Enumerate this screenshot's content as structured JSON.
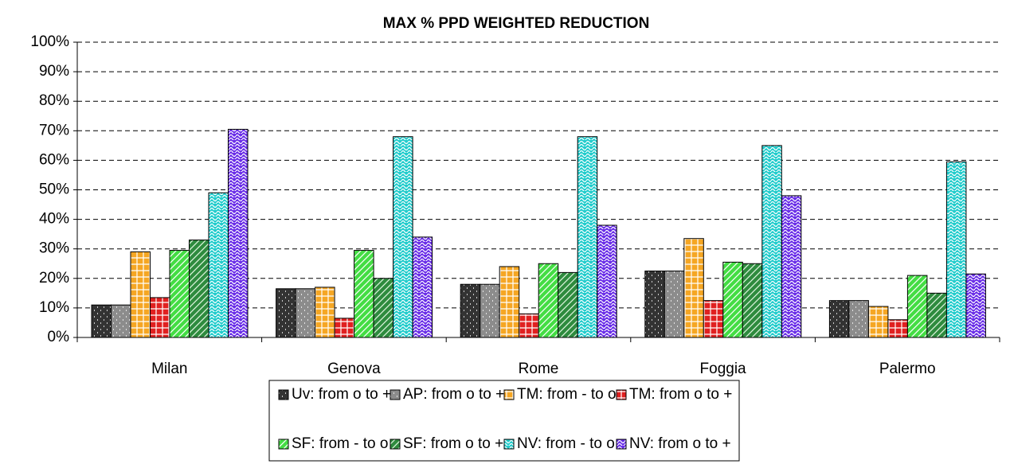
{
  "chart_data": {
    "type": "bar",
    "title": "MAX % PPD WEIGHTED REDUCTION",
    "categories": [
      "Milan",
      "Genova",
      "Rome",
      "Foggia",
      "Palermo"
    ],
    "series": [
      {
        "name": "Uv: from o to +",
        "color": "#333333",
        "values": [
          11,
          16.5,
          18,
          22.5,
          12.5
        ]
      },
      {
        "name": "AP: from o to +",
        "color": "#8c8c8c",
        "values": [
          11,
          16.5,
          18,
          22.5,
          12.5
        ]
      },
      {
        "name": "TM: from - to o",
        "color": "#f5a623",
        "values": [
          29,
          17,
          24,
          33.5,
          10.5
        ]
      },
      {
        "name": "TM: from o to +",
        "color": "#e02020",
        "values": [
          13.5,
          6.5,
          8,
          12.5,
          6
        ]
      },
      {
        "name": "SF: from - to o",
        "color": "#44dd44",
        "values": [
          29.5,
          29.5,
          25,
          25.5,
          21
        ]
      },
      {
        "name": "SF: from o to +",
        "color": "#2e8b3e",
        "values": [
          33,
          20,
          22,
          25,
          15
        ]
      },
      {
        "name": "NV: from - to o",
        "color": "#22cccc",
        "values": [
          49,
          68,
          68,
          65,
          59.5
        ]
      },
      {
        "name": "NV: from o to +",
        "color": "#6a2ee8",
        "values": [
          70.5,
          34,
          38,
          48,
          21.5
        ]
      }
    ],
    "ylim": [
      0,
      100
    ],
    "yticks": [
      {
        "value": 0,
        "label": "0%"
      },
      {
        "value": 10,
        "label": "10%"
      },
      {
        "value": 20,
        "label": "20%"
      },
      {
        "value": 30,
        "label": "30%"
      },
      {
        "value": 40,
        "label": "40%"
      },
      {
        "value": 50,
        "label": "50%"
      },
      {
        "value": 60,
        "label": "60%"
      },
      {
        "value": 70,
        "label": "70%"
      },
      {
        "value": 80,
        "label": "80%"
      },
      {
        "value": 90,
        "label": "90%"
      },
      {
        "value": 100,
        "label": "100%"
      }
    ],
    "grid": true,
    "legend": "bottom"
  }
}
